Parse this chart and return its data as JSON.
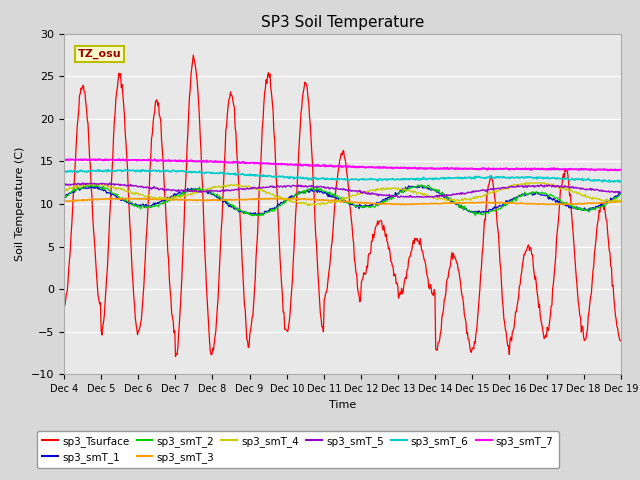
{
  "title": "SP3 Soil Temperature",
  "xlabel": "Time",
  "ylabel": "Soil Temperature (C)",
  "ylim": [
    -10,
    30
  ],
  "fig_facecolor": "#d8d8d8",
  "plot_bg_color": "#e8e8e8",
  "series_colors": {
    "sp3_Tsurface": "#ff0000",
    "sp3_smT_1": "#0000cc",
    "sp3_smT_2": "#00cc00",
    "sp3_smT_3": "#ff9900",
    "sp3_smT_4": "#cccc00",
    "sp3_smT_5": "#9900cc",
    "sp3_smT_6": "#00cccc",
    "sp3_smT_7": "#ff00ff"
  },
  "legend_label": "TZ_osu",
  "x_tick_labels": [
    "Dec 4",
    "Dec 5",
    "Dec 6",
    "Dec 7",
    "Dec 8",
    "Dec 9",
    "Dec 10",
    "Dec 11",
    "Dec 12",
    "Dec 13",
    "Dec 14",
    "Dec 15",
    "Dec 16",
    "Dec 17",
    "Dec 18",
    "Dec 19"
  ],
  "num_points": 720,
  "day_peaks": [
    24,
    25,
    22,
    27,
    23,
    25.5,
    24,
    16,
    8,
    6,
    4,
    13,
    5,
    14,
    10
  ],
  "day_troughs": [
    -2,
    -5,
    -5,
    -8,
    -7,
    -5,
    -5,
    -1,
    1,
    -1,
    -7,
    -7,
    -6,
    -5,
    -6
  ]
}
